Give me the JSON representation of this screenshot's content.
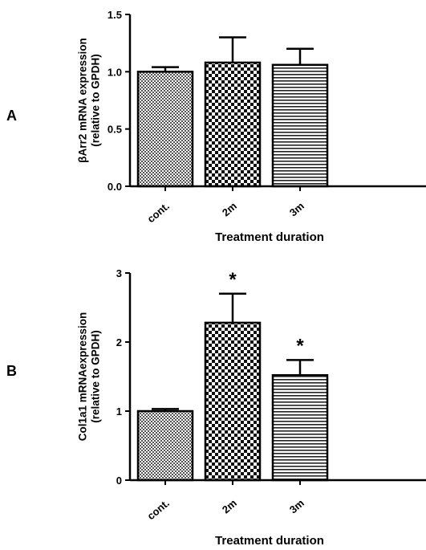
{
  "chart_data": [
    {
      "panel": "A",
      "type": "bar",
      "categories": [
        "cont.",
        "2m",
        "3m"
      ],
      "values": [
        1.0,
        1.08,
        1.06
      ],
      "errors": [
        0.04,
        0.22,
        0.14
      ],
      "significance": [
        "",
        "",
        ""
      ],
      "patterns": [
        "fine-checker",
        "checker",
        "horizontal-lines"
      ],
      "title": "",
      "xlabel": "Treatment duration",
      "ylabel_line1": "βArr2 mRNA expression",
      "ylabel_line2": "(relative to GPDH)",
      "ylim": [
        0,
        1.5
      ],
      "yticks": [
        "0.0",
        "0.5",
        "1.0",
        "1.5"
      ],
      "ytick_values": [
        0,
        0.5,
        1.0,
        1.5
      ],
      "grid": false
    },
    {
      "panel": "B",
      "type": "bar",
      "categories": [
        "cont.",
        "2m",
        "3m"
      ],
      "values": [
        1.0,
        2.28,
        1.52
      ],
      "errors": [
        0.03,
        0.42,
        0.22
      ],
      "significance": [
        "",
        "*",
        "*"
      ],
      "patterns": [
        "fine-checker",
        "checker",
        "horizontal-lines"
      ],
      "title": "",
      "xlabel": "Treatment duration",
      "ylabel_line1": "Col1a1 mRNAexpression",
      "ylabel_line2": "(relative to GPDH)",
      "ylim": [
        0,
        3
      ],
      "yticks": [
        "0",
        "1",
        "2",
        "3"
      ],
      "ytick_values": [
        0,
        1,
        2,
        3
      ],
      "grid": false
    }
  ]
}
